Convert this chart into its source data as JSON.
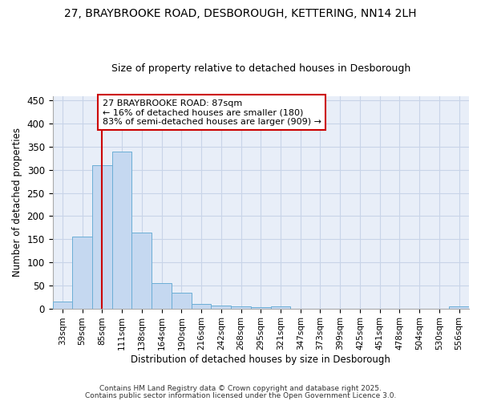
{
  "title1": "27, BRAYBROOKE ROAD, DESBOROUGH, KETTERING, NN14 2LH",
  "title2": "Size of property relative to detached houses in Desborough",
  "xlabel": "Distribution of detached houses by size in Desborough",
  "ylabel": "Number of detached properties",
  "bins": [
    "33sqm",
    "59sqm",
    "85sqm",
    "111sqm",
    "138sqm",
    "164sqm",
    "190sqm",
    "216sqm",
    "242sqm",
    "268sqm",
    "295sqm",
    "321sqm",
    "347sqm",
    "373sqm",
    "399sqm",
    "425sqm",
    "451sqm",
    "478sqm",
    "504sqm",
    "530sqm",
    "556sqm"
  ],
  "values": [
    15,
    155,
    310,
    340,
    165,
    55,
    34,
    10,
    7,
    5,
    3,
    5,
    0,
    0,
    0,
    0,
    0,
    0,
    0,
    0,
    4
  ],
  "bar_color": "#c5d8f0",
  "bar_edge_color": "#6baed6",
  "red_line_index": 2,
  "annotation_title": "27 BRAYBROOKE ROAD: 87sqm",
  "annotation_line2": "← 16% of detached houses are smaller (180)",
  "annotation_line3": "83% of semi-detached houses are larger (909) →",
  "annotation_box_color": "#ffffff",
  "annotation_box_edge": "#cc0000",
  "ylim": [
    0,
    460
  ],
  "yticks": [
    0,
    50,
    100,
    150,
    200,
    250,
    300,
    350,
    400,
    450
  ],
  "footer1": "Contains HM Land Registry data © Crown copyright and database right 2025.",
  "footer2": "Contains public sector information licensed under the Open Government Licence 3.0.",
  "bg_color": "#e8eef8",
  "grid_color": "#c8d4e8",
  "title1_fontsize": 10,
  "title2_fontsize": 9
}
